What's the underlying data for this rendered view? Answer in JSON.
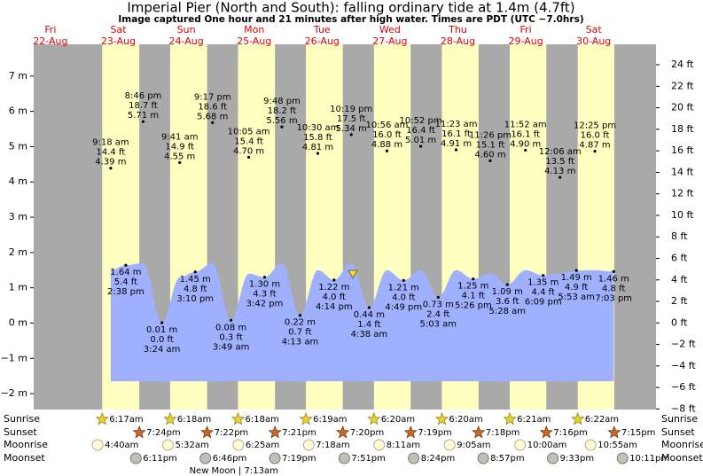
{
  "chart_data": {
    "type": "tide",
    "title": "Imperial Pier (North and South): falling  ordinary tide at 1.4m (4.7ft)",
    "subtitle": "Image captured One hour and 21 minutes after high water. Times are PDT (UTC −7.0hrs)",
    "ylim": [
      -2.45,
      7.9
    ],
    "yticks": [
      {
        "value": -2,
        "label": "−2 m"
      },
      {
        "value": -1,
        "label": "−1 m"
      },
      {
        "value": 0,
        "label": "0 m"
      },
      {
        "value": 1,
        "label": "1 m"
      },
      {
        "value": 2,
        "label": "2 m"
      },
      {
        "value": 3,
        "label": "3 m"
      },
      {
        "value": 4,
        "label": "4 m"
      },
      {
        "value": 5,
        "label": "5 m"
      },
      {
        "value": 6,
        "label": "6 m"
      },
      {
        "value": 7,
        "label": "7 m"
      }
    ],
    "y2lim": [
      -8.05,
      25.9
    ],
    "y2ticks": [
      {
        "value": -8,
        "label": "−8 ft"
      },
      {
        "value": -6,
        "label": "−6 ft"
      },
      {
        "value": -4,
        "label": "−4 ft"
      },
      {
        "value": -2,
        "label": "−2 ft"
      },
      {
        "value": 0,
        "label": "0 ft"
      },
      {
        "value": 2,
        "label": "2 ft"
      },
      {
        "value": 4,
        "label": "4 ft"
      },
      {
        "value": 6,
        "label": "6 ft"
      },
      {
        "value": 8,
        "label": "8 ft"
      },
      {
        "value": 10,
        "label": "10 ft"
      },
      {
        "value": 12,
        "label": "12 ft"
      },
      {
        "value": 14,
        "label": "14 ft"
      },
      {
        "value": 16,
        "label": "16 ft"
      },
      {
        "value": 18,
        "label": "18 ft"
      },
      {
        "value": 20,
        "label": "20 ft"
      },
      {
        "value": 22,
        "label": "22 ft"
      },
      {
        "value": 24,
        "label": "24 ft"
      }
    ],
    "row_labels": [
      "Sunrise",
      "Sunset",
      "Moonrise",
      "Moonset"
    ],
    "days": [
      {
        "name": "Fri",
        "date": "22-Aug"
      },
      {
        "name": "Sat",
        "date": "23-Aug",
        "sunrise": "6:17am",
        "sunset": "7:24pm",
        "moonrise": "4:40am",
        "moonset": "6:11pm",
        "tides": [
          {
            "time": "9:18 am",
            "ft": "14.4 ft",
            "m": 4.39,
            "m_label": "4.39 m"
          },
          {
            "time": "2:38 pm",
            "ft": "5.4 ft",
            "m": 1.64,
            "m_label": "1.64 m"
          },
          {
            "time": "8:46 pm",
            "ft": "18.7 ft",
            "m": 5.71,
            "m_label": "5.71 m"
          }
        ]
      },
      {
        "name": "Sun",
        "date": "24-Aug",
        "sunrise": "6:18am",
        "sunset": "7:22pm",
        "moonrise": "5:32am",
        "moonset": "6:46pm",
        "phase": "New Moon | 7:13am",
        "tides": [
          {
            "time": "3:24 am",
            "ft": "0.0 ft",
            "m": 0.01,
            "m_label": "0.01 m"
          },
          {
            "time": "9:41 am",
            "ft": "14.9 ft",
            "m": 4.55,
            "m_label": "4.55 m"
          },
          {
            "time": "3:10 pm",
            "ft": "4.8 ft",
            "m": 1.45,
            "m_label": "1.45 m"
          },
          {
            "time": "9:17 pm",
            "ft": "18.6 ft",
            "m": 5.68,
            "m_label": "5.68 m"
          }
        ]
      },
      {
        "name": "Mon",
        "date": "25-Aug",
        "sunrise": "6:18am",
        "sunset": "7:21pm",
        "moonrise": "6:25am",
        "moonset": "7:19pm",
        "tides": [
          {
            "time": "3:49 am",
            "ft": "0.3 ft",
            "m": 0.08,
            "m_label": "0.08 m"
          },
          {
            "time": "10:05 am",
            "ft": "15.4 ft",
            "m": 4.7,
            "m_label": "4.70 m"
          },
          {
            "time": "3:42 pm",
            "ft": "4.3 ft",
            "m": 1.3,
            "m_label": "1.30 m"
          },
          {
            "time": "9:48 pm",
            "ft": "18.2 ft",
            "m": 5.56,
            "m_label": "5.56 m"
          }
        ]
      },
      {
        "name": "Tue",
        "date": "26-Aug",
        "sunrise": "6:19am",
        "sunset": "7:20pm",
        "moonrise": "7:18am",
        "moonset": "7:51pm",
        "tides": [
          {
            "time": "4:13 am",
            "ft": "0.7 ft",
            "m": 0.22,
            "m_label": "0.22 m"
          },
          {
            "time": "10:30 am",
            "ft": "15.8 ft",
            "m": 4.81,
            "m_label": "4.81 m"
          },
          {
            "time": "4:14 pm",
            "ft": "4.0 ft",
            "m": 1.22,
            "m_label": "1.22 m"
          },
          {
            "time": "10:19 pm",
            "ft": "17.5 ft",
            "m": 5.34,
            "m_label": "5.34 m"
          }
        ]
      },
      {
        "name": "Wed",
        "date": "27-Aug",
        "sunrise": "6:20am",
        "sunset": "7:19pm",
        "moonrise": "8:11am",
        "moonset": "8:24pm",
        "tides": [
          {
            "time": "4:38 am",
            "ft": "1.4 ft",
            "m": 0.44,
            "m_label": "0.44 m"
          },
          {
            "time": "10:56 am",
            "ft": "16.0 ft",
            "m": 4.88,
            "m_label": "4.88 m"
          },
          {
            "time": "4:49 pm",
            "ft": "4.0 ft",
            "m": 1.21,
            "m_label": "1.21 m"
          },
          {
            "time": "10:52 pm",
            "ft": "16.4 ft",
            "m": 5.01,
            "m_label": "5.01 m"
          }
        ]
      },
      {
        "name": "Thu",
        "date": "28-Aug",
        "sunrise": "6:20am",
        "sunset": "7:18pm",
        "moonrise": "9:05am",
        "moonset": "8:57pm",
        "tides": [
          {
            "time": "5:03 am",
            "ft": "2.4 ft",
            "m": 0.73,
            "m_label": "0.73 m"
          },
          {
            "time": "11:23 am",
            "ft": "16.1 ft",
            "m": 4.91,
            "m_label": "4.91 m"
          },
          {
            "time": "5:26 pm",
            "ft": "4.1 ft",
            "m": 1.25,
            "m_label": "1.25 m"
          },
          {
            "time": "11:26 pm",
            "ft": "15.1 ft",
            "m": 4.6,
            "m_label": "4.60 m"
          }
        ]
      },
      {
        "name": "Fri",
        "date": "29-Aug",
        "sunrise": "6:21am",
        "sunset": "7:16pm",
        "moonrise": "10:00am",
        "moonset": "9:33pm",
        "tides": [
          {
            "time": "5:28 am",
            "ft": "3.6 ft",
            "m": 1.09,
            "m_label": "1.09 m"
          },
          {
            "time": "11:52 am",
            "ft": "16.1 ft",
            "m": 4.9,
            "m_label": "4.90 m"
          },
          {
            "time": "6:09 pm",
            "ft": "4.4 ft",
            "m": 1.35,
            "m_label": "1.35 m"
          }
        ]
      },
      {
        "name": "Sat",
        "date": "30-Aug",
        "sunrise": "6:22am",
        "sunset": "7:15pm",
        "moonrise": "10:55am",
        "moonset": "10:11pm",
        "tides": [
          {
            "time": "12:06 am",
            "ft": "13.5 ft",
            "m": 4.13,
            "m_label": "4.13 m"
          },
          {
            "time": "5:53 am",
            "ft": "4.9 ft",
            "m": 1.49,
            "m_label": "1.49 m"
          },
          {
            "time": "12:25 pm",
            "ft": "16.0 ft",
            "m": 4.87,
            "m_label": "4.87 m"
          },
          {
            "time": "7:03 pm",
            "ft": "4.8 ft",
            "m": 1.46,
            "m_label": "1.46 m"
          }
        ]
      }
    ],
    "curve": [
      1.5,
      1.64,
      1.7,
      0.01,
      1.3,
      1.45,
      1.7,
      0.08,
      1.4,
      1.3,
      1.7,
      0.22,
      1.5,
      1.22,
      1.7,
      0.44,
      1.5,
      1.21,
      1.5,
      0.73,
      1.5,
      1.25,
      1.4,
      1.09,
      1.5,
      1.35,
      1.4,
      1.49,
      1.5,
      1.46
    ]
  }
}
